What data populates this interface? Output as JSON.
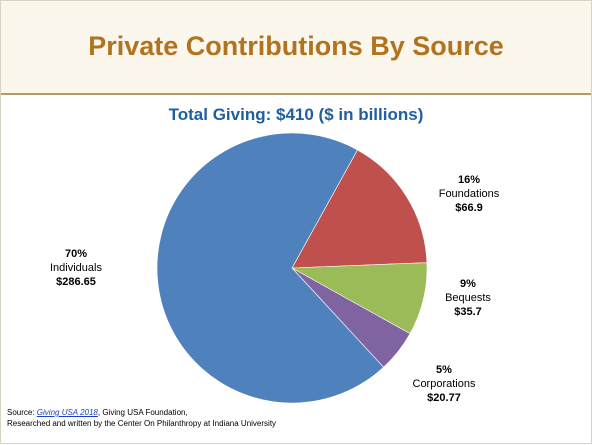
{
  "slide": {
    "title": "Private Contributions By Source"
  },
  "chart_data": {
    "type": "pie",
    "title": "Total Giving:  $410 ($ in billions)",
    "slices": [
      {
        "label": "Individuals",
        "percent": "70%",
        "value": 286.65,
        "value_label": "$286.65",
        "color": "#4f81bd"
      },
      {
        "label": "Foundations",
        "percent": "16%",
        "value": 66.9,
        "value_label": "$66.9",
        "color": "#c0504d"
      },
      {
        "label": "Bequests",
        "percent": "9%",
        "value": 35.7,
        "value_label": "$35.7",
        "color": "#9bbb59"
      },
      {
        "label": "Corporations",
        "percent": "5%",
        "value": 20.77,
        "value_label": "$20.77",
        "color": "#8064a2"
      }
    ],
    "start_direction": "clockwise from upper-right, Individuals wraps from lower-right to upper-right"
  },
  "source": {
    "prefix": "Source: ",
    "link_text": "Giving USA 2018",
    "after_link": ", Giving USA Foundation,",
    "line2": "Researched and written by the Center On Philanthropy at Indiana University"
  }
}
